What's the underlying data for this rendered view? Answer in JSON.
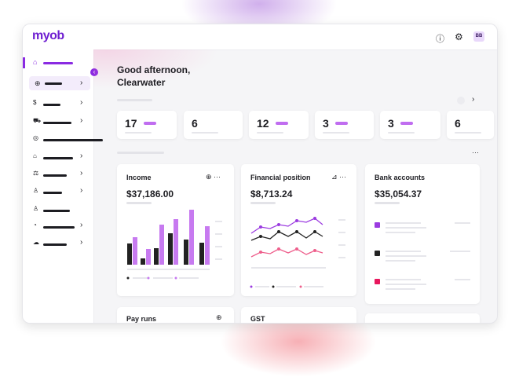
{
  "header": {
    "logo": "myob",
    "avatar": "BB"
  },
  "greeting": {
    "line1": "Good afternoon,",
    "line2": "Clearwater"
  },
  "stats": [
    17,
    6,
    12,
    3,
    3,
    6
  ],
  "cards": [
    {
      "title": "Income",
      "amount": "$37,186.00"
    },
    {
      "title": "Financial position",
      "amount": "$8,713.24"
    },
    {
      "title": "Bank accounts",
      "amount": "$35,054.37"
    },
    {
      "title": "Pay runs"
    },
    {
      "title": "GST"
    }
  ]
}
